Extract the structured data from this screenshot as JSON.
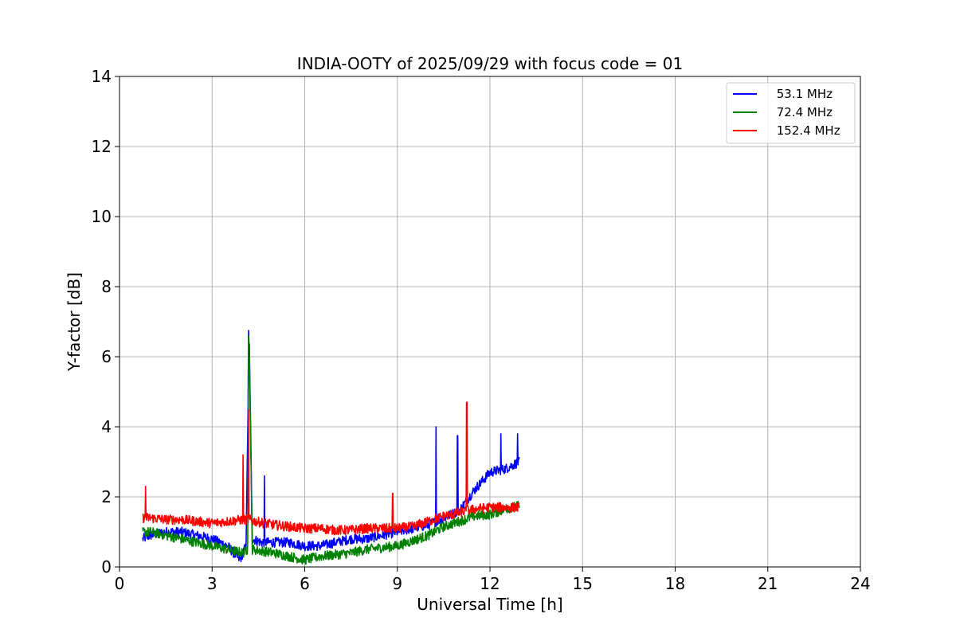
{
  "chart_data": {
    "type": "line",
    "title": "INDIA-OOTY of 2025/09/29 with focus code = 01",
    "xlabel": "Universal Time [h]",
    "ylabel": "Y-factor [dB]",
    "xlim": [
      0,
      24
    ],
    "ylim": [
      0,
      14
    ],
    "xticks": [
      0,
      3,
      6,
      9,
      12,
      15,
      18,
      21,
      24
    ],
    "yticks": [
      0,
      2,
      4,
      6,
      8,
      10,
      12,
      14
    ],
    "grid": true,
    "legend_position": "top-right",
    "series": [
      {
        "name": " 53.1 MHz",
        "color": "#0000ff",
        "x": [
          0.75,
          1.0,
          1.5,
          2.0,
          2.5,
          3.0,
          3.5,
          3.9,
          4.1,
          4.2,
          4.3,
          4.6,
          5.0,
          5.5,
          6.0,
          6.5,
          7.0,
          7.5,
          8.0,
          8.5,
          9.0,
          9.5,
          10.0,
          10.5,
          11.0,
          11.5,
          12.0,
          12.5,
          12.95
        ],
        "y": [
          0.8,
          0.9,
          1.0,
          1.0,
          0.9,
          0.8,
          0.6,
          0.2,
          0.6,
          6.7,
          0.8,
          0.7,
          0.7,
          0.7,
          0.6,
          0.6,
          0.7,
          0.8,
          0.8,
          0.9,
          1.0,
          1.1,
          1.2,
          1.4,
          1.6,
          2.2,
          2.7,
          2.8,
          3.0
        ],
        "spikes": [
          {
            "x": 4.18,
            "peak": 6.75
          },
          {
            "x": 4.7,
            "peak": 2.6
          },
          {
            "x": 10.25,
            "peak": 4.0
          },
          {
            "x": 10.95,
            "peak": 3.75
          },
          {
            "x": 12.35,
            "peak": 3.8
          },
          {
            "x": 12.9,
            "peak": 3.8
          }
        ]
      },
      {
        "name": " 72.4 MHz",
        "color": "#008000",
        "x": [
          0.75,
          1.0,
          1.5,
          2.0,
          2.5,
          3.0,
          3.5,
          4.0,
          4.15,
          4.2,
          4.3,
          5.0,
          5.5,
          6.0,
          6.5,
          7.0,
          7.5,
          8.0,
          8.5,
          9.0,
          9.5,
          10.0,
          10.5,
          11.0,
          11.5,
          12.0,
          12.5,
          12.95
        ],
        "y": [
          1.0,
          1.0,
          0.9,
          0.8,
          0.7,
          0.6,
          0.5,
          0.4,
          0.5,
          6.5,
          0.5,
          0.4,
          0.3,
          0.2,
          0.3,
          0.35,
          0.4,
          0.5,
          0.55,
          0.6,
          0.75,
          0.9,
          1.15,
          1.3,
          1.45,
          1.5,
          1.65,
          1.75
        ],
        "spikes": [
          {
            "x": 4.18,
            "peak": 6.6
          }
        ]
      },
      {
        "name": " 152.4 MHz",
        "color": "#ff0000",
        "x": [
          0.75,
          1.0,
          1.5,
          2.0,
          2.5,
          3.0,
          3.5,
          4.0,
          4.2,
          4.4,
          5.0,
          5.5,
          6.0,
          6.5,
          7.0,
          7.5,
          8.0,
          8.5,
          9.0,
          9.5,
          10.0,
          10.5,
          11.0,
          11.5,
          12.0,
          12.5,
          12.95
        ],
        "y": [
          1.4,
          1.4,
          1.35,
          1.35,
          1.3,
          1.25,
          1.3,
          1.35,
          1.35,
          1.3,
          1.2,
          1.15,
          1.1,
          1.1,
          1.05,
          1.05,
          1.1,
          1.1,
          1.1,
          1.15,
          1.3,
          1.45,
          1.55,
          1.65,
          1.7,
          1.7,
          1.7
        ],
        "spikes": [
          {
            "x": 0.85,
            "peak": 2.3
          },
          {
            "x": 4.0,
            "peak": 3.2
          },
          {
            "x": 4.18,
            "peak": 4.5
          },
          {
            "x": 8.85,
            "peak": 2.1
          },
          {
            "x": 11.25,
            "peak": 4.7
          }
        ]
      }
    ]
  }
}
